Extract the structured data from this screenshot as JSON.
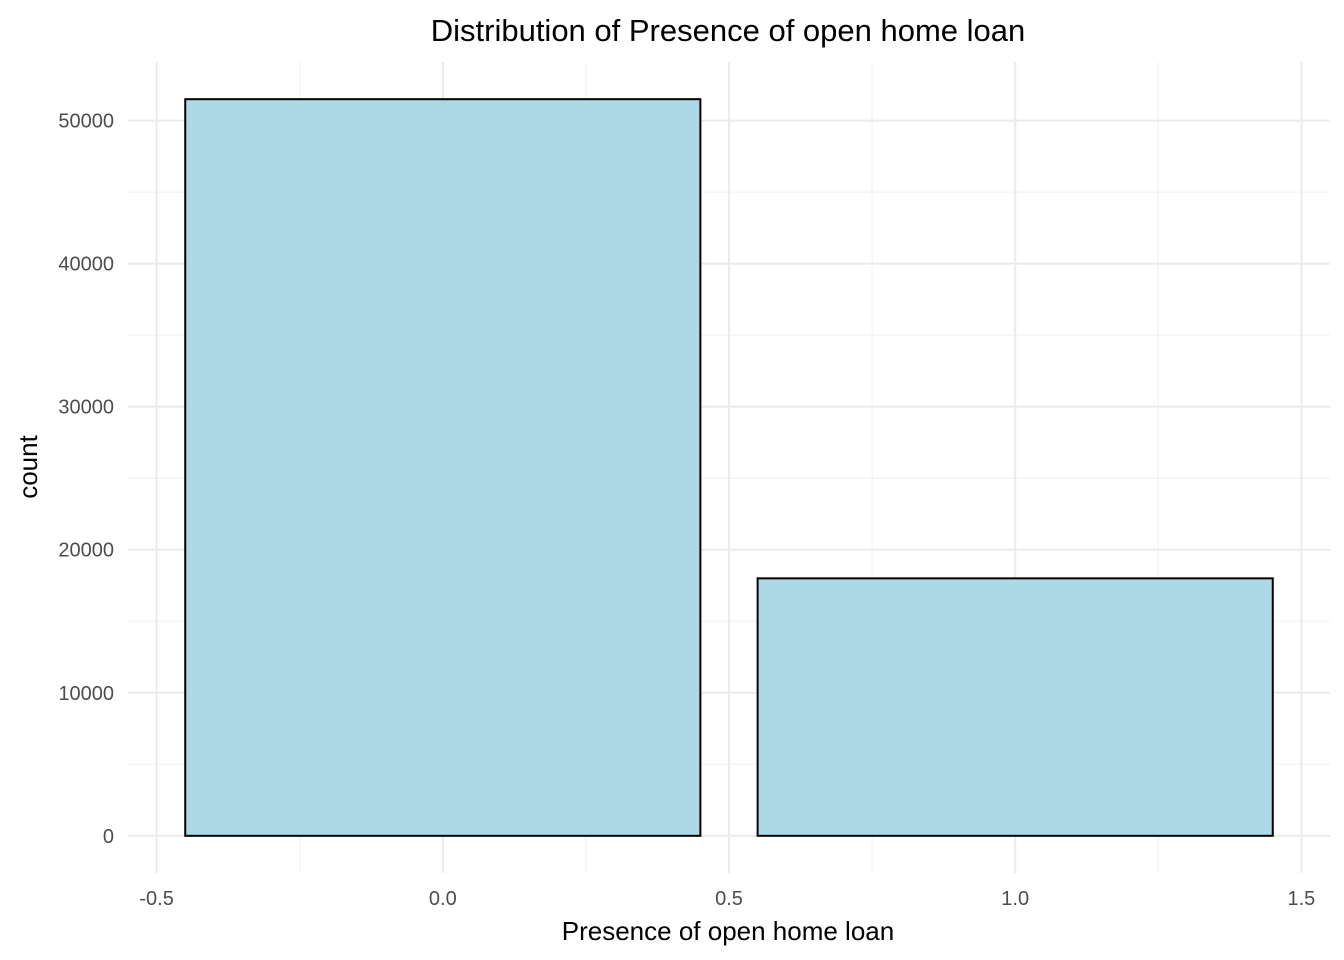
{
  "chart_data": {
    "type": "bar",
    "title": "Distribution of Presence of open home loan",
    "xlabel": "Presence of open home loan",
    "ylabel": "count",
    "x": [
      0,
      1
    ],
    "values": [
      51500,
      18000
    ],
    "bar_width": 0.9,
    "xlim": [
      -0.55,
      1.55
    ],
    "ylim": [
      -2600,
      54100
    ],
    "x_ticks": [
      -0.5,
      0.0,
      0.5,
      1.0,
      1.5
    ],
    "x_tick_labels": [
      "-0.5",
      "0.0",
      "0.5",
      "1.0",
      "1.5"
    ],
    "y_ticks": [
      0,
      10000,
      20000,
      30000,
      40000,
      50000
    ],
    "y_tick_labels": [
      "0",
      "10000",
      "20000",
      "30000",
      "40000",
      "50000"
    ],
    "grid": true,
    "legend": "none",
    "colors": {
      "bar_fill": "#add8e6",
      "bar_outline": "#000000",
      "grid": "#ebebeb",
      "background": "#ffffff"
    }
  }
}
